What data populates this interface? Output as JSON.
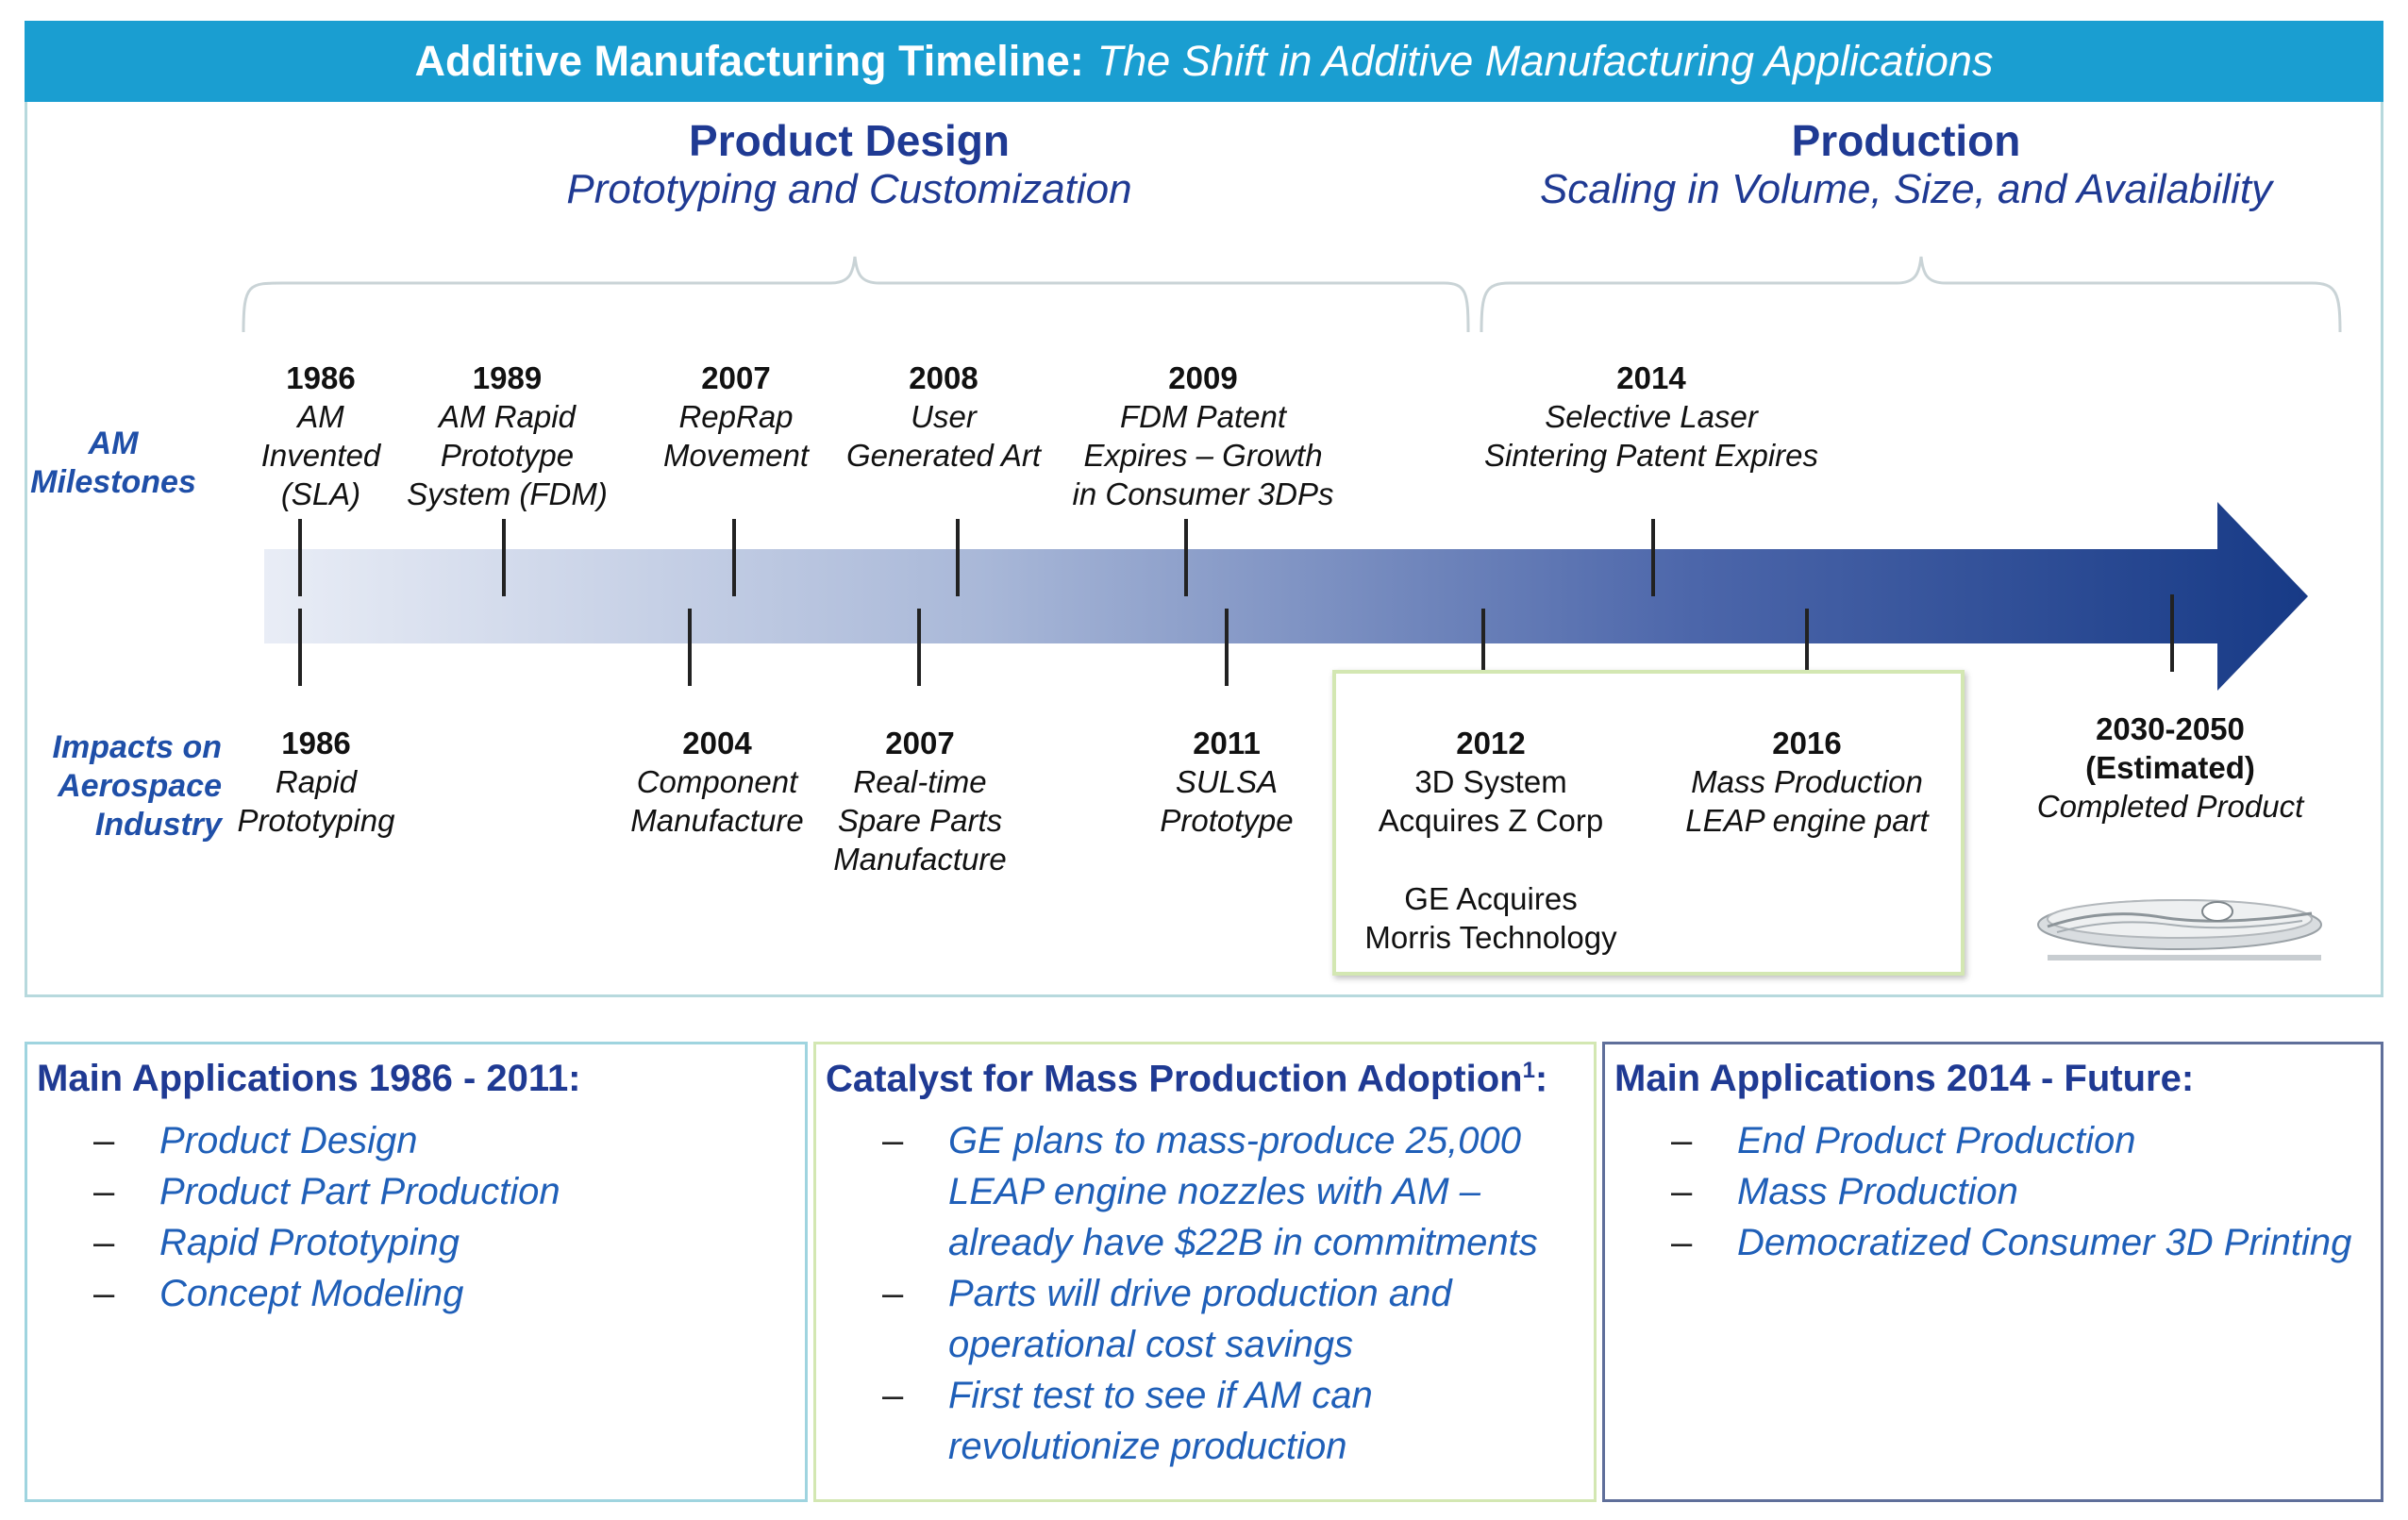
{
  "title": {
    "main": "Additive Manufacturing Timeline:",
    "sub": "The Shift in Additive Manufacturing Applications"
  },
  "phases": [
    {
      "title": "Product Design",
      "subtitle": "Prototyping and Customization"
    },
    {
      "title": "Production",
      "subtitle": "Scaling in Volume, Size, and Availability"
    }
  ],
  "row_labels": {
    "milestones": "AM\nMilestones",
    "impacts": "Impacts on\nAerospace\nIndustry"
  },
  "milestones": [
    {
      "year": "1986",
      "text": "AM\nInvented\n(SLA)"
    },
    {
      "year": "1989",
      "text": "AM Rapid\nPrototype\nSystem (FDM)"
    },
    {
      "year": "2007",
      "text": "RepRap\nMovement"
    },
    {
      "year": "2008",
      "text": "User\nGenerated Art"
    },
    {
      "year": "2009",
      "text": "FDM Patent\nExpires – Growth\nin Consumer 3DPs"
    },
    {
      "year": "2014",
      "text": "Selective Laser\nSintering Patent Expires"
    }
  ],
  "impacts": [
    {
      "year": "1986",
      "text": "Rapid\nPrototyping"
    },
    {
      "year": "2004",
      "text": "Component\nManufacture"
    },
    {
      "year": "2007",
      "text": "Real-time\nSpare Parts\nManufacture"
    },
    {
      "year": "2011",
      "text": "SULSA\nPrototype"
    },
    {
      "year": "2012",
      "text": "3D System\nAcquires Z Corp"
    },
    {
      "year": "2016",
      "text": "Mass Production\nLEAP engine part"
    },
    {
      "year": "2030-2050\n(Estimated)",
      "text": "Completed Product"
    }
  ],
  "ge_note": "GE Acquires\nMorris Technology",
  "colors": {
    "title_bar": "#1a9ed1",
    "heading_blue": "#1f3a93",
    "list_blue": "#1f5fb8",
    "arrow_start": "#e9edf6",
    "arrow_end": "#173a86",
    "box1_border": "#9fd4df",
    "box2_border": "#d3e7b2",
    "box3_border": "#5f6f9a"
  },
  "applications": [
    {
      "heading": "Main Applications 1986 - 2011:",
      "items": [
        "Product Design",
        "Product Part Production",
        "Rapid Prototyping",
        "Concept Modeling"
      ]
    },
    {
      "heading": "Catalyst for Mass Production Adoption",
      "superscript": "1",
      "heading_suffix": ":",
      "items": [
        "GE plans to mass-produce 25,000 LEAP engine nozzles with AM – already have $22B in commitments",
        "Parts will drive production and operational cost savings",
        "First test to see if AM can revolutionize production"
      ]
    },
    {
      "heading": "Main Applications 2014 - Future:",
      "items": [
        "End Product Production",
        "Mass Production",
        "Democratized Consumer 3D Printing"
      ]
    }
  ],
  "bullet": "–"
}
